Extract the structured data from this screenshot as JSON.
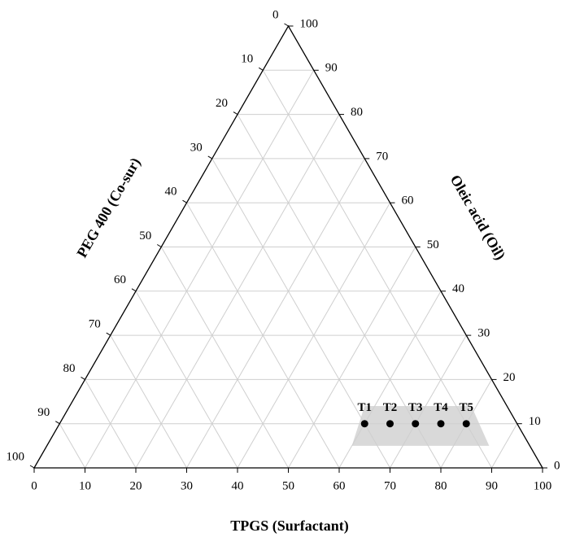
{
  "chart_data": {
    "type": "ternary",
    "axes": {
      "bottom": {
        "label": "TPGS (Surfactant)",
        "ticks": [
          0,
          10,
          20,
          30,
          40,
          50,
          60,
          70,
          80,
          90,
          100
        ]
      },
      "right": {
        "label": "Oleic acid (Oil)",
        "ticks": [
          0,
          10,
          20,
          30,
          40,
          50,
          60,
          70,
          80,
          90,
          100
        ]
      },
      "left": {
        "label": "PEG 400 (Co-sur)",
        "ticks": [
          0,
          10,
          20,
          30,
          40,
          50,
          60,
          70,
          80,
          90,
          100
        ]
      }
    },
    "lim": [
      0,
      100
    ],
    "grid": true,
    "categories": [
      "T1",
      "T2",
      "T3",
      "T4",
      "T5"
    ],
    "series": [
      {
        "color": "#000000",
        "tpgs": [
          60,
          65,
          70,
          75,
          80
        ],
        "oil": [
          10,
          10,
          10,
          10,
          10
        ],
        "peg": [
          30,
          25,
          20,
          15,
          10
        ]
      }
    ],
    "region": {
      "color": "#d9d9d9",
      "tpgs": [
        60,
        87,
        79,
        58
      ],
      "oil": [
        5,
        5,
        14,
        14
      ]
    }
  }
}
